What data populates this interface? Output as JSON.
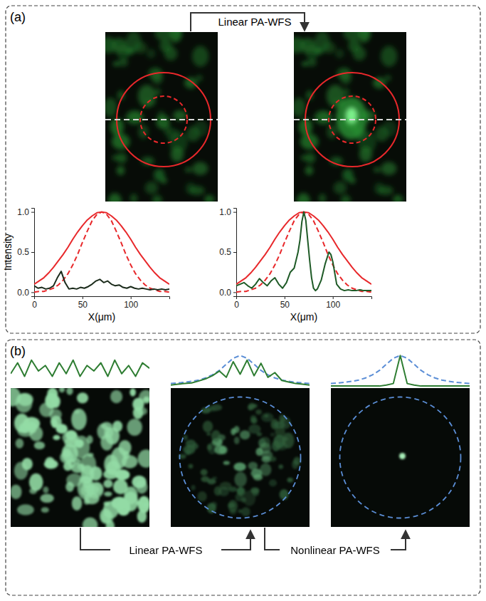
{
  "panels": [
    {
      "label": "(a)",
      "arrows": [
        "Linear PA-WFS"
      ]
    },
    {
      "label": "(b)",
      "arrows": [
        "Linear PA-WFS",
        "Nonlinear PA-WFS"
      ]
    }
  ],
  "chart_data": [
    {
      "type": "line",
      "xlabel": "X(μm)",
      "ylabel": "Intensity",
      "xlim": [
        0,
        140
      ],
      "ylim": [
        -0.05,
        1.05
      ],
      "xticks": [
        0,
        50,
        100
      ],
      "yticks": [
        {
          "value": 0,
          "label": "0.0"
        },
        {
          "value": 0.5,
          "label": "0.5"
        },
        {
          "value": 1,
          "label": "1.0"
        }
      ],
      "series": [
        {
          "color": "#e8282b",
          "line_style": "solid",
          "x": [
            0,
            5,
            10,
            15,
            20,
            25,
            30,
            35,
            40,
            45,
            50,
            55,
            60,
            65,
            70,
            75,
            80,
            85,
            90,
            95,
            100,
            105,
            110,
            115,
            120,
            125,
            130,
            135,
            140
          ],
          "values": [
            0.1,
            0.14,
            0.18,
            0.24,
            0.31,
            0.39,
            0.47,
            0.56,
            0.66,
            0.75,
            0.83,
            0.9,
            0.95,
            0.99,
            1.0,
            0.99,
            0.95,
            0.9,
            0.83,
            0.75,
            0.66,
            0.56,
            0.47,
            0.39,
            0.31,
            0.24,
            0.18,
            0.14,
            0.1
          ]
        },
        {
          "color": "#e8282b",
          "line_style": "dashed",
          "x": [
            0,
            5,
            10,
            15,
            20,
            25,
            30,
            35,
            40,
            45,
            50,
            55,
            60,
            65,
            70,
            75,
            80,
            85,
            90,
            95,
            100,
            105,
            110,
            115,
            120,
            125,
            130,
            135,
            140
          ],
          "values": [
            0.0,
            0.01,
            0.01,
            0.03,
            0.05,
            0.09,
            0.15,
            0.23,
            0.34,
            0.47,
            0.62,
            0.76,
            0.89,
            0.97,
            1.0,
            0.97,
            0.89,
            0.76,
            0.62,
            0.47,
            0.34,
            0.23,
            0.15,
            0.09,
            0.05,
            0.03,
            0.01,
            0.01,
            0.0
          ]
        },
        {
          "color": "#1b2b1b",
          "line_style": "solid",
          "x": [
            0,
            4,
            8,
            12,
            16,
            20,
            24,
            28,
            32,
            36,
            40,
            44,
            48,
            52,
            56,
            60,
            64,
            68,
            72,
            76,
            80,
            84,
            88,
            92,
            96,
            100,
            104,
            108,
            112,
            116,
            120,
            124,
            128,
            132,
            136,
            140
          ],
          "values": [
            0.08,
            0.05,
            0.06,
            0.04,
            0.05,
            0.08,
            0.18,
            0.26,
            0.12,
            0.04,
            0.05,
            0.04,
            0.06,
            0.05,
            0.07,
            0.1,
            0.14,
            0.16,
            0.12,
            0.14,
            0.1,
            0.08,
            0.09,
            0.06,
            0.05,
            0.07,
            0.05,
            0.04,
            0.05,
            0.04,
            0.03,
            0.04,
            0.03,
            0.04,
            0.03,
            0.04
          ]
        }
      ]
    },
    {
      "type": "line",
      "xlabel": "X(μm)",
      "xlim": [
        0,
        140
      ],
      "ylim": [
        -0.05,
        1.05
      ],
      "xticks": [
        0,
        50,
        100
      ],
      "yticks": [
        {
          "value": 0,
          "label": "0.0"
        },
        {
          "value": 0.5,
          "label": "0.5"
        },
        {
          "value": 1,
          "label": "1.0"
        }
      ],
      "series": [
        {
          "color": "#e8282b",
          "line_style": "solid",
          "x": [
            0,
            5,
            10,
            15,
            20,
            25,
            30,
            35,
            40,
            45,
            50,
            55,
            60,
            65,
            70,
            75,
            80,
            85,
            90,
            95,
            100,
            105,
            110,
            115,
            120,
            125,
            130,
            135,
            140
          ],
          "values": [
            0.1,
            0.14,
            0.18,
            0.24,
            0.31,
            0.39,
            0.47,
            0.56,
            0.66,
            0.75,
            0.83,
            0.9,
            0.95,
            0.99,
            1.0,
            0.99,
            0.95,
            0.9,
            0.83,
            0.75,
            0.66,
            0.56,
            0.47,
            0.39,
            0.31,
            0.24,
            0.18,
            0.14,
            0.1
          ]
        },
        {
          "color": "#e8282b",
          "line_style": "dashed",
          "x": [
            0,
            5,
            10,
            15,
            20,
            25,
            30,
            35,
            40,
            45,
            50,
            55,
            60,
            65,
            70,
            75,
            80,
            85,
            90,
            95,
            100,
            105,
            110,
            115,
            120,
            125,
            130,
            135,
            140
          ],
          "values": [
            0.0,
            0.01,
            0.01,
            0.03,
            0.05,
            0.09,
            0.15,
            0.23,
            0.34,
            0.47,
            0.62,
            0.76,
            0.89,
            0.97,
            1.0,
            0.97,
            0.89,
            0.76,
            0.62,
            0.47,
            0.34,
            0.23,
            0.15,
            0.09,
            0.05,
            0.03,
            0.01,
            0.01,
            0.0
          ]
        },
        {
          "color": "#1e5a26",
          "line_style": "solid",
          "x": [
            0,
            4,
            8,
            12,
            16,
            20,
            24,
            28,
            32,
            36,
            40,
            44,
            48,
            52,
            56,
            60,
            64,
            66,
            68,
            70,
            72,
            74,
            76,
            78,
            80,
            82,
            84,
            88,
            92,
            96,
            98,
            100,
            104,
            108,
            112,
            116,
            120,
            124,
            128,
            132,
            136,
            140
          ],
          "values": [
            0.08,
            0.1,
            0.12,
            0.08,
            0.05,
            0.1,
            0.17,
            0.12,
            0.08,
            0.14,
            0.18,
            0.1,
            0.05,
            0.12,
            0.25,
            0.3,
            0.5,
            0.65,
            0.88,
            1.0,
            0.9,
            0.65,
            0.4,
            0.18,
            0.05,
            0.02,
            0.04,
            0.15,
            0.35,
            0.5,
            0.47,
            0.38,
            0.1,
            0.04,
            0.02,
            0.03,
            0.02,
            0.02,
            0.03,
            0.02,
            0.02,
            0.02
          ]
        }
      ]
    },
    {
      "type": "line",
      "tick_labels": false,
      "xlim": [
        0,
        100
      ],
      "ylim": [
        0,
        1.05
      ],
      "series": [
        {
          "color": "#2e7d32",
          "line_style": "solid",
          "x": [
            0,
            5,
            10,
            15,
            20,
            25,
            30,
            35,
            40,
            45,
            50,
            55,
            60,
            65,
            70,
            75,
            80,
            85,
            90,
            95,
            100
          ],
          "values": [
            0.4,
            0.8,
            0.3,
            0.9,
            0.5,
            0.7,
            0.3,
            0.8,
            0.4,
            0.9,
            0.3,
            0.7,
            0.5,
            0.8,
            0.3,
            0.9,
            0.4,
            0.7,
            0.3,
            0.8,
            0.6
          ]
        }
      ]
    },
    {
      "type": "line",
      "tick_labels": false,
      "xlim": [
        0,
        100
      ],
      "ylim": [
        0,
        1.05
      ],
      "series": [
        {
          "color": "#5b8ed6",
          "line_style": "dashed",
          "x": [
            0,
            5,
            10,
            15,
            20,
            25,
            30,
            35,
            40,
            45,
            50,
            55,
            60,
            65,
            70,
            75,
            80,
            85,
            90,
            95,
            100
          ],
          "values": [
            0.1,
            0.12,
            0.14,
            0.17,
            0.21,
            0.28,
            0.38,
            0.52,
            0.72,
            0.91,
            1.0,
            0.91,
            0.72,
            0.52,
            0.38,
            0.28,
            0.21,
            0.17,
            0.14,
            0.12,
            0.1
          ]
        },
        {
          "color": "#2e7d32",
          "line_style": "solid",
          "x": [
            0,
            5,
            10,
            15,
            20,
            25,
            30,
            35,
            40,
            45,
            50,
            55,
            60,
            65,
            70,
            75,
            80,
            85,
            90,
            95,
            100
          ],
          "values": [
            0.05,
            0.08,
            0.1,
            0.12,
            0.18,
            0.25,
            0.35,
            0.5,
            0.3,
            0.8,
            0.4,
            0.85,
            0.35,
            0.75,
            0.3,
            0.45,
            0.2,
            0.15,
            0.1,
            0.08,
            0.05
          ]
        }
      ]
    },
    {
      "type": "line",
      "tick_labels": false,
      "xlim": [
        0,
        100
      ],
      "ylim": [
        0,
        1.05
      ],
      "series": [
        {
          "color": "#5b8ed6",
          "line_style": "dashed",
          "x": [
            0,
            5,
            10,
            15,
            20,
            25,
            30,
            35,
            40,
            45,
            50,
            55,
            60,
            65,
            70,
            75,
            80,
            85,
            90,
            95,
            100
          ],
          "values": [
            0.1,
            0.12,
            0.14,
            0.17,
            0.21,
            0.28,
            0.38,
            0.52,
            0.72,
            0.91,
            1.0,
            0.91,
            0.72,
            0.52,
            0.38,
            0.28,
            0.21,
            0.17,
            0.14,
            0.12,
            0.1
          ]
        },
        {
          "color": "#2e7d32",
          "line_style": "solid",
          "x": [
            0,
            5,
            10,
            15,
            20,
            25,
            30,
            35,
            40,
            45,
            50,
            55,
            60,
            65,
            70,
            75,
            80,
            85,
            90,
            95,
            100
          ],
          "values": [
            0.02,
            0.02,
            0.02,
            0.02,
            0.02,
            0.02,
            0.02,
            0.02,
            0.05,
            0.1,
            1.0,
            0.1,
            0.05,
            0.02,
            0.02,
            0.02,
            0.02,
            0.02,
            0.02,
            0.02,
            0.02
          ]
        }
      ]
    }
  ]
}
